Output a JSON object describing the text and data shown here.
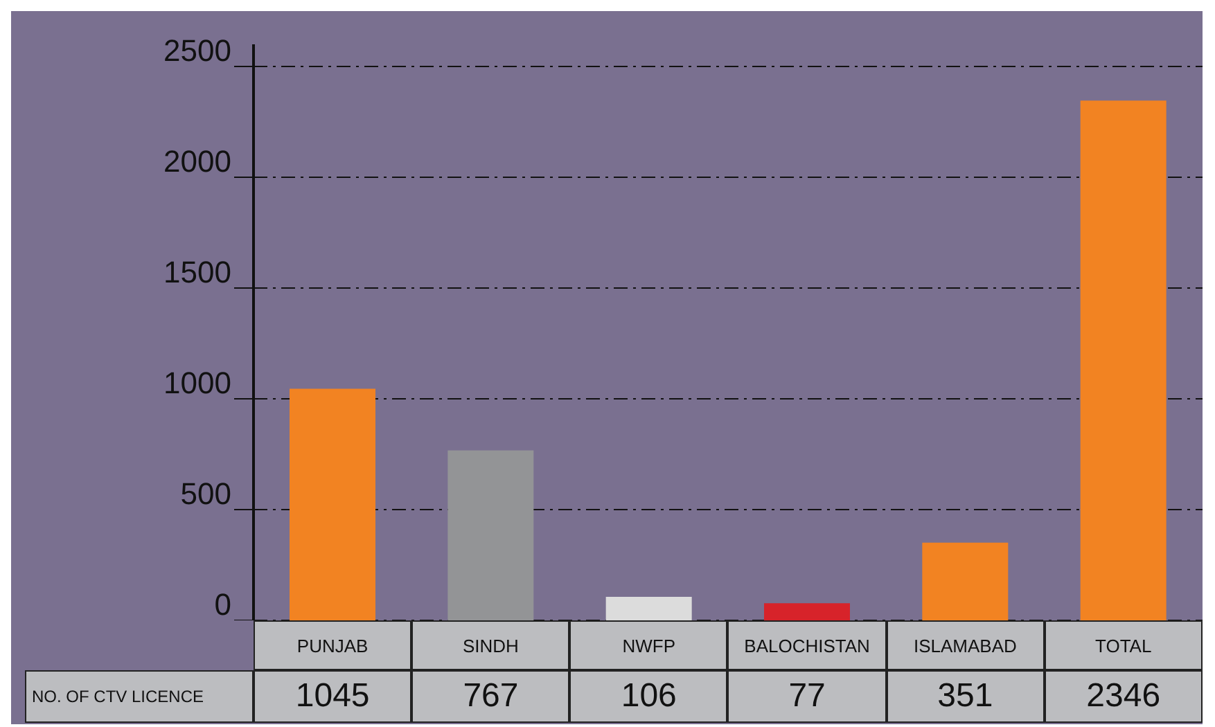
{
  "chart_data": {
    "type": "bar",
    "categories": [
      "PUNJAB",
      "SINDH",
      "NWFP",
      "BALOCHISTAN",
      "ISLAMABAD",
      "TOTAL"
    ],
    "values": [
      1045,
      767,
      106,
      77,
      351,
      2346
    ],
    "colors": [
      "#f28322",
      "#939496",
      "#dcdcdc",
      "#d7232a",
      "#f28322",
      "#f28322"
    ],
    "ylim": [
      0,
      2600
    ],
    "yticks": [
      0,
      500,
      1000,
      1500,
      2000,
      2500
    ],
    "grid": "y",
    "data_labels": true,
    "annotations": [
      "NO. OF CTV LICENCE"
    ]
  }
}
